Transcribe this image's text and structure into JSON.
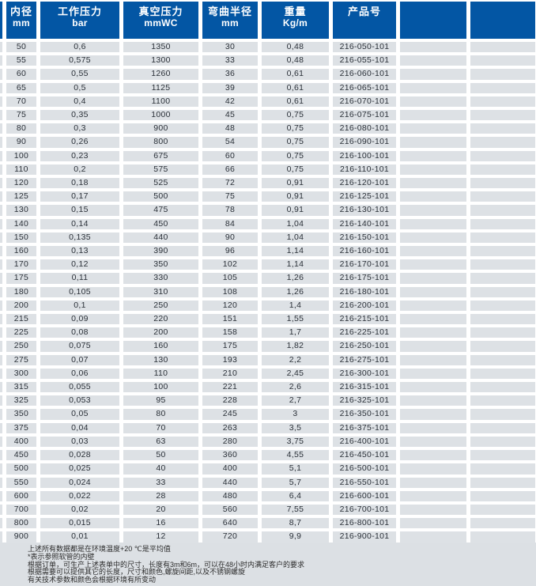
{
  "colors": {
    "header_blue": "#0356a4",
    "row_gray": "#dde1e5",
    "footer_gray": "#dce0e4",
    "header_text": "#ffffff",
    "body_text": "#2a3038"
  },
  "table": {
    "columns": [
      {
        "title": "内径",
        "unit": "mm"
      },
      {
        "title": "工作压力",
        "unit": "bar"
      },
      {
        "title": "真空压力",
        "unit": "mmWC"
      },
      {
        "title": "弯曲半径",
        "unit": "mm"
      },
      {
        "title": "重量",
        "unit": "Kg/m"
      },
      {
        "title": "产品号",
        "unit": ""
      }
    ],
    "rows": [
      [
        "50",
        "0,6",
        "1350",
        "30",
        "0,48",
        "216-050-101"
      ],
      [
        "55",
        "0,575",
        "1300",
        "33",
        "0,48",
        "216-055-101"
      ],
      [
        "60",
        "0,55",
        "1260",
        "36",
        "0,61",
        "216-060-101"
      ],
      [
        "65",
        "0,5",
        "1125",
        "39",
        "0,61",
        "216-065-101"
      ],
      [
        "70",
        "0,4",
        "1100",
        "42",
        "0,61",
        "216-070-101"
      ],
      [
        "75",
        "0,35",
        "1000",
        "45",
        "0,75",
        "216-075-101"
      ],
      [
        "80",
        "0,3",
        "900",
        "48",
        "0,75",
        "216-080-101"
      ],
      [
        "90",
        "0,26",
        "800",
        "54",
        "0,75",
        "216-090-101"
      ],
      [
        "100",
        "0,23",
        "675",
        "60",
        "0,75",
        "216-100-101"
      ],
      [
        "110",
        "0,2",
        "575",
        "66",
        "0,75",
        "216-110-101"
      ],
      [
        "120",
        "0,18",
        "525",
        "72",
        "0,91",
        "216-120-101"
      ],
      [
        "125",
        "0,17",
        "500",
        "75",
        "0,91",
        "216-125-101"
      ],
      [
        "130",
        "0,15",
        "475",
        "78",
        "0,91",
        "216-130-101"
      ],
      [
        "140",
        "0,14",
        "450",
        "84",
        "1,04",
        "216-140-101"
      ],
      [
        "150",
        "0,135",
        "440",
        "90",
        "1,04",
        "216-150-101"
      ],
      [
        "160",
        "0,13",
        "390",
        "96",
        "1,14",
        "216-160-101"
      ],
      [
        "170",
        "0,12",
        "350",
        "102",
        "1,14",
        "216-170-101"
      ],
      [
        "175",
        "0,11",
        "330",
        "105",
        "1,26",
        "216-175-101"
      ],
      [
        "180",
        "0,105",
        "310",
        "108",
        "1,26",
        "216-180-101"
      ],
      [
        "200",
        "0,1",
        "250",
        "120",
        "1,4",
        "216-200-101"
      ],
      [
        "215",
        "0,09",
        "220",
        "151",
        "1,55",
        "216-215-101"
      ],
      [
        "225",
        "0,08",
        "200",
        "158",
        "1,7",
        "216-225-101"
      ],
      [
        "250",
        "0,075",
        "160",
        "175",
        "1,82",
        "216-250-101"
      ],
      [
        "275",
        "0,07",
        "130",
        "193",
        "2,2",
        "216-275-101"
      ],
      [
        "300",
        "0,06",
        "110",
        "210",
        "2,45",
        "216-300-101"
      ],
      [
        "315",
        "0,055",
        "100",
        "221",
        "2,6",
        "216-315-101"
      ],
      [
        "325",
        "0,053",
        "95",
        "228",
        "2,7",
        "216-325-101"
      ],
      [
        "350",
        "0,05",
        "80",
        "245",
        "3",
        "216-350-101"
      ],
      [
        "375",
        "0,04",
        "70",
        "263",
        "3,5",
        "216-375-101"
      ],
      [
        "400",
        "0,03",
        "63",
        "280",
        "3,75",
        "216-400-101"
      ],
      [
        "450",
        "0,028",
        "50",
        "360",
        "4,55",
        "216-450-101"
      ],
      [
        "500",
        "0,025",
        "40",
        "400",
        "5,1",
        "216-500-101"
      ],
      [
        "550",
        "0,024",
        "33",
        "440",
        "5,7",
        "216-550-101"
      ],
      [
        "600",
        "0,022",
        "28",
        "480",
        "6,4",
        "216-600-101"
      ],
      [
        "700",
        "0,02",
        "20",
        "560",
        "7,55",
        "216-700-101"
      ],
      [
        "800",
        "0,015",
        "16",
        "640",
        "8,7",
        "216-800-101"
      ],
      [
        "900",
        "0,01",
        "12",
        "720",
        "9,9",
        "216-900-101"
      ]
    ]
  },
  "footer": {
    "notes": [
      "上述所有数据都是在环境温度+20 ℃是平均值",
      "*表示参照软管的内壁",
      "根据订单，可生产上述表单中的尺寸，长度有3m和6m，可以在48小时内满足客户的要求",
      "根据需要可以提供其它的长度，尺寸和颜色,螺旋间距,以及不锈钢螺旋",
      "有关技术参数和颜色会根据环境有所变动"
    ]
  }
}
